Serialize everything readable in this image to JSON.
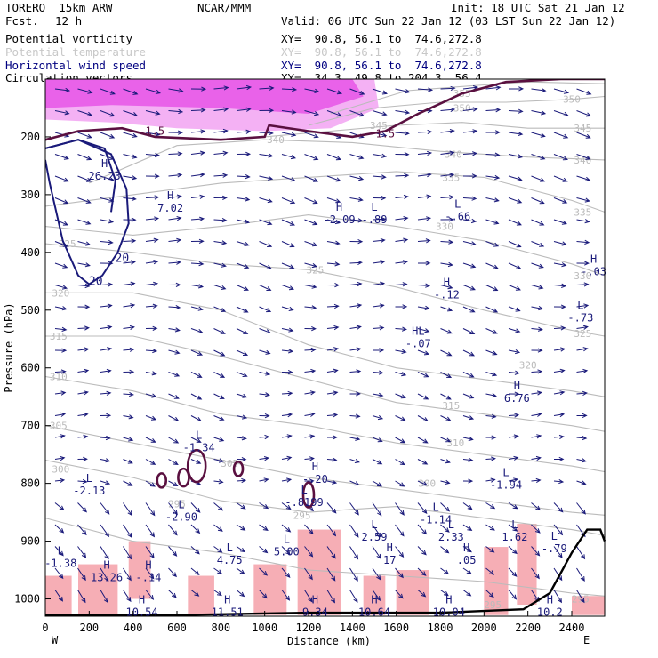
{
  "header": {
    "model": "TORERO  15km ARW",
    "org": "NCAR/MMM",
    "init": "Init: 18 UTC Sat 21 Jan 12",
    "fcst_label": "Fcst.",
    "fcst_value": "12 h",
    "valid": "Valid: 06 UTC Sun 22 Jan 12 (03 LST Sun 22 Jan 12)"
  },
  "legend": [
    {
      "name": "Potential vorticity",
      "xy": "XY=  90.8, 56.1 to  74.6,272.8",
      "color": "#000000"
    },
    {
      "name": "Potential temperature",
      "xy": "XY=  90.8, 56.1 to  74.6,272.8",
      "color": "#c8c8c8"
    },
    {
      "name": "Horizontal wind speed",
      "xy": "XY=  90.8, 56.1 to  74.6,272.8",
      "color": "#000080"
    },
    {
      "name": "Circulation vectors",
      "xy": "XY=  34.3, 49.8 to 204.3, 56.4",
      "color": "#000000"
    }
  ],
  "chart_data": {
    "type": "cross-section",
    "xlabel": "Distance (km)",
    "ylabel": "Pressure (hPa)",
    "x_ticks": [
      0,
      200,
      400,
      600,
      800,
      1000,
      1200,
      1400,
      1600,
      1800,
      2000,
      2200,
      2400
    ],
    "y_ticks": [
      200,
      300,
      400,
      500,
      600,
      700,
      800,
      900,
      1000
    ],
    "xlim": [
      0,
      2550
    ],
    "ylim": [
      100,
      1030
    ],
    "y_scale": "pressure, top = 100 hPa",
    "end_labels": {
      "left": "W",
      "right": "E"
    },
    "colors": {
      "theta": "#bbbbbb",
      "wind": "#1a1a7a",
      "pv": "#5a1040",
      "fill_high": "#e020e0",
      "fill_low": "#f4a0a8",
      "terrain": "#000000"
    },
    "theta_lines": [
      {
        "value": 355,
        "pts": [
          [
            1300,
            160
          ],
          [
            1650,
            120
          ],
          [
            2000,
            110
          ],
          [
            2200,
            105
          ],
          [
            2550,
            108
          ]
        ],
        "labels": [
          [
            1900,
            125
          ]
        ]
      },
      {
        "value": 350,
        "pts": [
          [
            1200,
            180
          ],
          [
            1500,
            150
          ],
          [
            1800,
            140
          ],
          [
            2100,
            140
          ],
          [
            2400,
            135
          ],
          [
            2550,
            130
          ]
        ],
        "labels": [
          [
            1900,
            150
          ],
          [
            2400,
            135
          ]
        ]
      },
      {
        "value": 345,
        "pts": [
          [
            1000,
            200
          ],
          [
            1300,
            190
          ],
          [
            1600,
            180
          ],
          [
            1900,
            175
          ],
          [
            2200,
            185
          ],
          [
            2550,
            185
          ]
        ],
        "labels": [
          [
            1520,
            180
          ],
          [
            2450,
            185
          ]
        ]
      },
      {
        "value": 340,
        "pts": [
          [
            200,
            280
          ],
          [
            600,
            215
          ],
          [
            1000,
            205
          ],
          [
            1400,
            210
          ],
          [
            1800,
            225
          ],
          [
            2200,
            235
          ],
          [
            2550,
            240
          ]
        ],
        "labels": [
          [
            1050,
            205
          ],
          [
            1860,
            230
          ],
          [
            2450,
            240
          ]
        ]
      },
      {
        "value": 335,
        "pts": [
          [
            0,
            320
          ],
          [
            400,
            300
          ],
          [
            800,
            280
          ],
          [
            1200,
            270
          ],
          [
            1600,
            260
          ],
          [
            2000,
            270
          ],
          [
            2400,
            310
          ],
          [
            2550,
            330
          ]
        ],
        "labels": [
          [
            1850,
            270
          ],
          [
            2450,
            330
          ]
        ]
      },
      {
        "value": 330,
        "pts": [
          [
            0,
            355
          ],
          [
            400,
            370
          ],
          [
            800,
            355
          ],
          [
            1200,
            335
          ],
          [
            1600,
            355
          ],
          [
            2000,
            380
          ],
          [
            2400,
            420
          ],
          [
            2550,
            440
          ]
        ],
        "labels": [
          [
            1820,
            355
          ],
          [
            2450,
            440
          ]
        ]
      },
      {
        "value": 325,
        "pts": [
          [
            0,
            385
          ],
          [
            400,
            400
          ],
          [
            800,
            420
          ],
          [
            1200,
            430
          ],
          [
            1600,
            460
          ],
          [
            2000,
            500
          ],
          [
            2400,
            535
          ],
          [
            2550,
            545
          ]
        ],
        "labels": [
          [
            100,
            385
          ],
          [
            1230,
            430
          ],
          [
            2450,
            540
          ]
        ]
      },
      {
        "value": 320,
        "pts": [
          [
            0,
            470
          ],
          [
            400,
            470
          ],
          [
            800,
            500
          ],
          [
            1200,
            560
          ],
          [
            1600,
            600
          ],
          [
            2000,
            620
          ],
          [
            2400,
            640
          ],
          [
            2550,
            650
          ]
        ],
        "labels": [
          [
            70,
            470
          ],
          [
            2200,
            595
          ]
        ]
      },
      {
        "value": 315,
        "pts": [
          [
            0,
            545
          ],
          [
            400,
            545
          ],
          [
            800,
            580
          ],
          [
            1200,
            620
          ],
          [
            1600,
            660
          ],
          [
            2000,
            680
          ],
          [
            2400,
            700
          ],
          [
            2550,
            710
          ]
        ],
        "labels": [
          [
            60,
            545
          ],
          [
            1850,
            665
          ]
        ]
      },
      {
        "value": 310,
        "pts": [
          [
            0,
            615
          ],
          [
            400,
            640
          ],
          [
            800,
            680
          ],
          [
            1200,
            700
          ],
          [
            1600,
            730
          ],
          [
            2000,
            750
          ],
          [
            2400,
            770
          ],
          [
            2550,
            780
          ]
        ],
        "labels": [
          [
            60,
            615
          ],
          [
            1870,
            730
          ]
        ]
      },
      {
        "value": 305,
        "pts": [
          [
            0,
            700
          ],
          [
            400,
            730
          ],
          [
            800,
            760
          ],
          [
            1200,
            790
          ],
          [
            1600,
            810
          ],
          [
            2000,
            830
          ],
          [
            2400,
            850
          ],
          [
            2550,
            855
          ]
        ],
        "labels": [
          [
            60,
            700
          ],
          [
            840,
            765
          ]
        ]
      },
      {
        "value": 300,
        "pts": [
          [
            0,
            760
          ],
          [
            400,
            790
          ],
          [
            800,
            830
          ],
          [
            1200,
            850
          ],
          [
            1600,
            840
          ],
          [
            2000,
            860
          ],
          [
            2400,
            880
          ],
          [
            2550,
            890
          ]
        ],
        "labels": [
          [
            70,
            775
          ],
          [
            1740,
            800
          ]
        ]
      },
      {
        "value": 295,
        "pts": [
          [
            0,
            860
          ],
          [
            400,
            900
          ],
          [
            800,
            920
          ],
          [
            1200,
            950
          ],
          [
            1600,
            960
          ],
          [
            2000,
            970
          ],
          [
            2400,
            990
          ],
          [
            2550,
            995
          ]
        ],
        "labels": [
          [
            600,
            835
          ],
          [
            1170,
            855
          ],
          [
            2040,
            1010
          ],
          [
            2440,
            1000
          ]
        ]
      }
    ],
    "pv_contours": [
      {
        "label": "1.5",
        "pts": [
          [
            0,
            205
          ],
          [
            150,
            190
          ],
          [
            350,
            185
          ],
          [
            500,
            200
          ],
          [
            800,
            205
          ],
          [
            1000,
            200
          ],
          [
            1020,
            180
          ],
          [
            1200,
            190
          ],
          [
            1400,
            200
          ],
          [
            1550,
            190
          ],
          [
            1700,
            160
          ],
          [
            1900,
            125
          ],
          [
            2100,
            105
          ],
          [
            2350,
            100
          ],
          [
            2550,
            100
          ]
        ],
        "label_at": [
          [
            500,
            190
          ],
          [
            1550,
            195
          ]
        ]
      }
    ],
    "wind_contours": [
      {
        "label": "20",
        "pts": [
          [
            0,
            220
          ],
          [
            150,
            205
          ],
          [
            300,
            230
          ],
          [
            370,
            290
          ],
          [
            380,
            350
          ],
          [
            330,
            400
          ],
          [
            260,
            440
          ],
          [
            200,
            455
          ],
          [
            150,
            440
          ],
          [
            80,
            380
          ],
          [
            20,
            280
          ],
          [
            0,
            240
          ]
        ],
        "label_at": [
          [
            230,
            450
          ]
        ]
      },
      {
        "label": "20",
        "pts": [
          [
            0,
            220
          ],
          [
            150,
            205
          ],
          [
            270,
            220
          ],
          [
            320,
            275
          ],
          [
            300,
            330
          ]
        ],
        "label_at": [
          [
            350,
            410
          ]
        ]
      }
    ],
    "extrema": [
      {
        "kind": "H",
        "value": "26.23",
        "x": 270,
        "y": 265
      },
      {
        "kind": "H",
        "value": "7.02",
        "x": 570,
        "y": 320
      },
      {
        "kind": "H",
        "value": "-2.09",
        "x": 1340,
        "y": 340
      },
      {
        "kind": "L",
        "value": "-.89",
        "x": 1500,
        "y": 340
      },
      {
        "kind": "L",
        "value": "-.66",
        "x": 1880,
        "y": 335
      },
      {
        "kind": "H",
        "value": "-.03",
        "x": 2500,
        "y": 430
      },
      {
        "kind": "H",
        "value": "-.12",
        "x": 1830,
        "y": 470
      },
      {
        "kind": "L",
        "value": "-.73",
        "x": 2440,
        "y": 510
      },
      {
        "kind": "HL",
        "value": "-.07",
        "x": 1700,
        "y": 555
      },
      {
        "kind": "H",
        "value": "6.76",
        "x": 2150,
        "y": 650
      },
      {
        "kind": "L",
        "value": "-1.34",
        "x": 700,
        "y": 735
      },
      {
        "kind": "H",
        "value": "-.20",
        "x": 1230,
        "y": 790
      },
      {
        "kind": "L",
        "value": "-2.13",
        "x": 200,
        "y": 810
      },
      {
        "kind": "L",
        "value": "-1.94",
        "x": 2100,
        "y": 800
      },
      {
        "kind": "L",
        "value": "-.8199",
        "x": 1180,
        "y": 830
      },
      {
        "kind": "L",
        "value": "-2.90",
        "x": 620,
        "y": 855
      },
      {
        "kind": "L",
        "value": "-1.14",
        "x": 1780,
        "y": 860
      },
      {
        "kind": "L",
        "value": "2.59",
        "x": 1500,
        "y": 890
      },
      {
        "kind": "L",
        "value": "2.33",
        "x": 1850,
        "y": 890
      },
      {
        "kind": "L",
        "value": "1.62",
        "x": 2140,
        "y": 890
      },
      {
        "kind": "L",
        "value": "-.79",
        "x": 2320,
        "y": 910
      },
      {
        "kind": "L",
        "value": "-1.38",
        "x": 70,
        "y": 935
      },
      {
        "kind": "L",
        "value": "4.75",
        "x": 840,
        "y": 930
      },
      {
        "kind": "L",
        "value": "5.00",
        "x": 1100,
        "y": 915
      },
      {
        "kind": "H",
        "value": "17",
        "x": 1570,
        "y": 930
      },
      {
        "kind": "H",
        "value": ".05",
        "x": 1920,
        "y": 930
      },
      {
        "kind": "H",
        "value": "13.26",
        "x": 280,
        "y": 960
      },
      {
        "kind": "H",
        "value": "-.14",
        "x": 470,
        "y": 960
      },
      {
        "kind": "H",
        "value": "10.54",
        "x": 440,
        "y": 1020
      },
      {
        "kind": "H",
        "value": "11.51",
        "x": 830,
        "y": 1020
      },
      {
        "kind": "H",
        "value": "9.34",
        "x": 1230,
        "y": 1020
      },
      {
        "kind": "H",
        "value": "10.64",
        "x": 1500,
        "y": 1020
      },
      {
        "kind": "H",
        "value": "10.04",
        "x": 1840,
        "y": 1020
      },
      {
        "kind": "H",
        "value": "10.2",
        "x": 2300,
        "y": 1020
      }
    ],
    "terrain": [
      [
        0,
        1028
      ],
      [
        600,
        1028
      ],
      [
        1200,
        1024
      ],
      [
        1800,
        1024
      ],
      [
        2180,
        1018
      ],
      [
        2300,
        990
      ],
      [
        2400,
        920
      ],
      [
        2470,
        880
      ],
      [
        2530,
        880
      ],
      [
        2550,
        900
      ]
    ]
  }
}
